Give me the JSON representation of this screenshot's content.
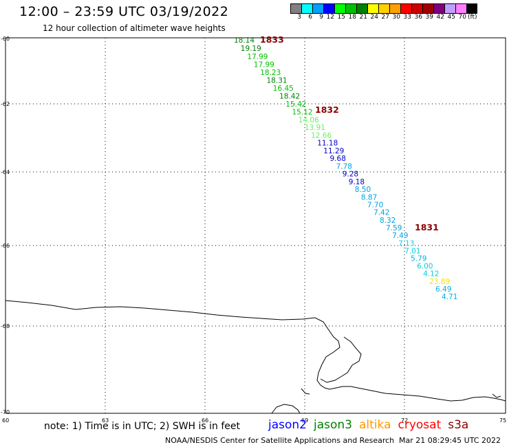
{
  "header": {
    "title": "12:00 – 23:59 UTC 03/19/2022",
    "subtitle": "12 hour collection of altimeter wave heights"
  },
  "legend": {
    "colors": [
      "#808080",
      "#00ffff",
      "#00a0ff",
      "#0000ff",
      "#00ff00",
      "#00c000",
      "#008000",
      "#ffff00",
      "#ffd000",
      "#ffa000",
      "#ff0000",
      "#d00000",
      "#a00000",
      "#800080",
      "#c0a0ff",
      "#ff80ff",
      "#000000"
    ],
    "labels": [
      "3",
      "6",
      "9",
      "12",
      "15",
      "18",
      "21",
      "24",
      "27",
      "30",
      "33",
      "36",
      "39",
      "42",
      "45",
      "70"
    ],
    "unit": "(ft)"
  },
  "map": {
    "x_ticks": [
      "60",
      "63",
      "66",
      "69",
      "72",
      "75"
    ],
    "y_ticks": [
      "-60",
      "-62",
      "-64",
      "-66",
      "-68",
      "-70"
    ],
    "pass_labels": [
      "1833",
      "1832",
      "1831"
    ],
    "swh_points": [
      {
        "v": "18.14",
        "c": "#008000"
      },
      {
        "v": "19.19",
        "c": "#008000"
      },
      {
        "v": "17.99",
        "c": "#00c000"
      },
      {
        "v": "17.99",
        "c": "#00c000"
      },
      {
        "v": "18.23",
        "c": "#00c000"
      },
      {
        "v": "18.31",
        "c": "#008000"
      },
      {
        "v": "16.45",
        "c": "#00c000"
      },
      {
        "v": "18.42",
        "c": "#008000"
      },
      {
        "v": "15.42",
        "c": "#00c000"
      },
      {
        "v": "15.12",
        "c": "#00c000"
      },
      {
        "v": "14.06",
        "c": "#66ee66"
      },
      {
        "v": "13.91",
        "c": "#66ee66"
      },
      {
        "v": "12.66",
        "c": "#66ee66"
      },
      {
        "v": "11.18",
        "c": "#0000cc"
      },
      {
        "v": "11.29",
        "c": "#0000cc"
      },
      {
        "v": "9.68",
        "c": "#0000cc"
      },
      {
        "v": "7.78",
        "c": "#00a0e0"
      },
      {
        "v": "9.28",
        "c": "#0000cc"
      },
      {
        "v": "9.18",
        "c": "#0000cc"
      },
      {
        "v": "8.50",
        "c": "#00a0e0"
      },
      {
        "v": "8.87",
        "c": "#00a0e0"
      },
      {
        "v": "7.70",
        "c": "#00a0e0"
      },
      {
        "v": "7.42",
        "c": "#00a0e0"
      },
      {
        "v": "8.32",
        "c": "#00a0e0"
      },
      {
        "v": "7.59",
        "c": "#00a0e0"
      },
      {
        "v": "7.49",
        "c": "#00a0e0"
      },
      {
        "v": "7.13",
        "c": "#00d0e0"
      },
      {
        "v": "7.01",
        "c": "#00d0e0"
      },
      {
        "v": "5.79",
        "c": "#00b0e0"
      },
      {
        "v": "6.00",
        "c": "#00d0e0"
      },
      {
        "v": "4.12",
        "c": "#00d0e0"
      },
      {
        "v": "23.89",
        "c": "#ffe000"
      },
      {
        "v": "6.49",
        "c": "#00b0e0"
      },
      {
        "v": "4.71",
        "c": "#00b0e0"
      }
    ]
  },
  "footer": {
    "note": "note: 1) Time is in UTC; 2) SWH is in feet",
    "satellites": [
      {
        "name": "jason2",
        "color": "#0000ff"
      },
      {
        "name": "jason3",
        "color": "#008000"
      },
      {
        "name": "altika",
        "color": "#ff9900"
      },
      {
        "name": "cryosat",
        "color": "#ff0000"
      },
      {
        "name": "s3a",
        "color": "#8b0000"
      }
    ],
    "credit": "NOAA/NESDIS Center for Satellite Applications and Research",
    "timestamp": "Mar 21 08:29:45 UTC 2022"
  }
}
